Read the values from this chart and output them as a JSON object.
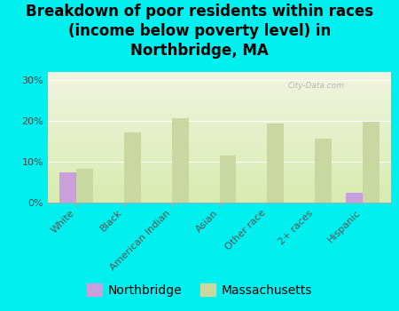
{
  "title": "Breakdown of poor residents within races\n(income below poverty level) in\nNorthbridge, MA",
  "categories": [
    "White",
    "Black",
    "American Indian",
    "Asian",
    "Other race",
    "2+ races",
    "Hispanic"
  ],
  "northbridge_values": [
    7.2,
    0,
    0,
    0,
    0,
    0,
    2.2
  ],
  "massachusetts_values": [
    8.1,
    17.0,
    20.5,
    11.5,
    19.2,
    15.5,
    19.8
  ],
  "northbridge_color": "#c9a0dc",
  "massachusetts_color": "#c8d8a0",
  "background_color": "#00efef",
  "grad_top": "#f0f5e0",
  "grad_bottom": "#d8ecb0",
  "ylabel_ticks": [
    "0%",
    "10%",
    "20%",
    "30%"
  ],
  "ytick_vals": [
    0,
    10,
    20,
    30
  ],
  "ylim": [
    0,
    32
  ],
  "bar_width": 0.35,
  "title_fontsize": 12,
  "tick_fontsize": 8,
  "legend_fontsize": 10,
  "watermark": "City-Data.com"
}
